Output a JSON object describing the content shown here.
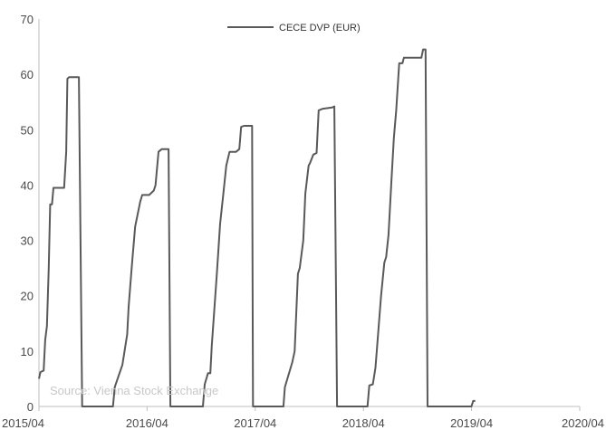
{
  "chart_data": {
    "type": "line",
    "title": "",
    "xlabel": "",
    "ylabel": "",
    "ylim": [
      0,
      70
    ],
    "yticks": [
      0,
      10,
      20,
      30,
      40,
      50,
      60,
      70
    ],
    "xticks": [
      "2015/04",
      "2016/04",
      "2017/04",
      "2018/04",
      "2019/04",
      "2020/04"
    ],
    "xlim": [
      "2015-04-01",
      "2020-04-01"
    ],
    "grid": false,
    "legend_position": "top-center",
    "source": "Source: Vienna Stock Exchange",
    "series": [
      {
        "name": "CECE DVP (EUR)",
        "color": "#595959",
        "points": [
          [
            "2015-04-01",
            5.0
          ],
          [
            "2015-04-06",
            6.2
          ],
          [
            "2015-04-17",
            6.5
          ],
          [
            "2015-04-22",
            12.0
          ],
          [
            "2015-04-28",
            14.5
          ],
          [
            "2015-05-04",
            25.0
          ],
          [
            "2015-05-09",
            36.5
          ],
          [
            "2015-05-15",
            36.5
          ],
          [
            "2015-05-20",
            39.5
          ],
          [
            "2015-06-14",
            39.5
          ],
          [
            "2015-06-25",
            39.5
          ],
          [
            "2015-07-02",
            46.0
          ],
          [
            "2015-07-06",
            59.2
          ],
          [
            "2015-07-12",
            59.5
          ],
          [
            "2015-08-14",
            59.5
          ],
          [
            "2015-08-25",
            0.0
          ],
          [
            "2015-11-26",
            0.0
          ],
          [
            "2015-12-07",
            0.0
          ],
          [
            "2015-12-13",
            3.5
          ],
          [
            "2016-01-08",
            7.5
          ],
          [
            "2016-01-24",
            13.0
          ],
          [
            "2016-01-29",
            18.0
          ],
          [
            "2016-02-09",
            25.5
          ],
          [
            "2016-02-20",
            32.5
          ],
          [
            "2016-03-08",
            37.0
          ],
          [
            "2016-03-15",
            38.2
          ],
          [
            "2016-04-07",
            38.2
          ],
          [
            "2016-04-23",
            39.0
          ],
          [
            "2016-04-29",
            40.0
          ],
          [
            "2016-05-09",
            46.0
          ],
          [
            "2016-05-20",
            46.5
          ],
          [
            "2016-06-07",
            46.5
          ],
          [
            "2016-06-12",
            46.5
          ],
          [
            "2016-06-18",
            0.0
          ],
          [
            "2016-09-25",
            0.0
          ],
          [
            "2016-10-06",
            0.0
          ],
          [
            "2016-10-12",
            4.0
          ],
          [
            "2016-10-23",
            6.0
          ],
          [
            "2016-10-31",
            6.0
          ],
          [
            "2016-11-05",
            11.0
          ],
          [
            "2016-11-22",
            24.0
          ],
          [
            "2016-12-03",
            33.0
          ],
          [
            "2016-12-14",
            38.5
          ],
          [
            "2016-12-24",
            43.5
          ],
          [
            "2017-01-04",
            46.0
          ],
          [
            "2017-01-26",
            46.0
          ],
          [
            "2017-02-06",
            46.5
          ],
          [
            "2017-02-12",
            50.5
          ],
          [
            "2017-02-22",
            50.7
          ],
          [
            "2017-03-21",
            50.7
          ],
          [
            "2017-03-24",
            0.0
          ],
          [
            "2017-06-24",
            0.0
          ],
          [
            "2017-07-05",
            0.0
          ],
          [
            "2017-07-10",
            3.5
          ],
          [
            "2017-08-04",
            8.0
          ],
          [
            "2017-08-12",
            10.0
          ],
          [
            "2017-08-23",
            24.0
          ],
          [
            "2017-08-29",
            25.0
          ],
          [
            "2017-09-10",
            30.0
          ],
          [
            "2017-09-17",
            38.5
          ],
          [
            "2017-09-28",
            43.5
          ],
          [
            "2017-10-03",
            44.0
          ],
          [
            "2017-10-14",
            45.5
          ],
          [
            "2017-10-25",
            45.8
          ],
          [
            "2017-11-01",
            53.5
          ],
          [
            "2017-11-15",
            53.8
          ],
          [
            "2017-12-16",
            54.0
          ],
          [
            "2017-12-24",
            54.2
          ],
          [
            "2018-01-02",
            0.0
          ],
          [
            "2018-04-10",
            0.0
          ],
          [
            "2018-04-15",
            0.0
          ],
          [
            "2018-04-21",
            3.8
          ],
          [
            "2018-05-03",
            4.0
          ],
          [
            "2018-05-12",
            7.0
          ],
          [
            "2018-05-31",
            20.0
          ],
          [
            "2018-06-11",
            26.0
          ],
          [
            "2018-06-17",
            27.0
          ],
          [
            "2018-06-25",
            31.0
          ],
          [
            "2018-07-05",
            41.0
          ],
          [
            "2018-07-13",
            48.5
          ],
          [
            "2018-07-21",
            53.5
          ],
          [
            "2018-07-31",
            62.0
          ],
          [
            "2018-08-11",
            62.0
          ],
          [
            "2018-08-16",
            63.0
          ],
          [
            "2018-10-14",
            63.0
          ],
          [
            "2018-10-20",
            64.5
          ],
          [
            "2018-10-28",
            64.5
          ],
          [
            "2018-11-04",
            0.0
          ],
          [
            "2019-03-15",
            0.0
          ],
          [
            "2019-04-01",
            0.0
          ],
          [
            "2019-04-07",
            1.0
          ],
          [
            "2019-04-14",
            1.0
          ]
        ]
      }
    ]
  }
}
